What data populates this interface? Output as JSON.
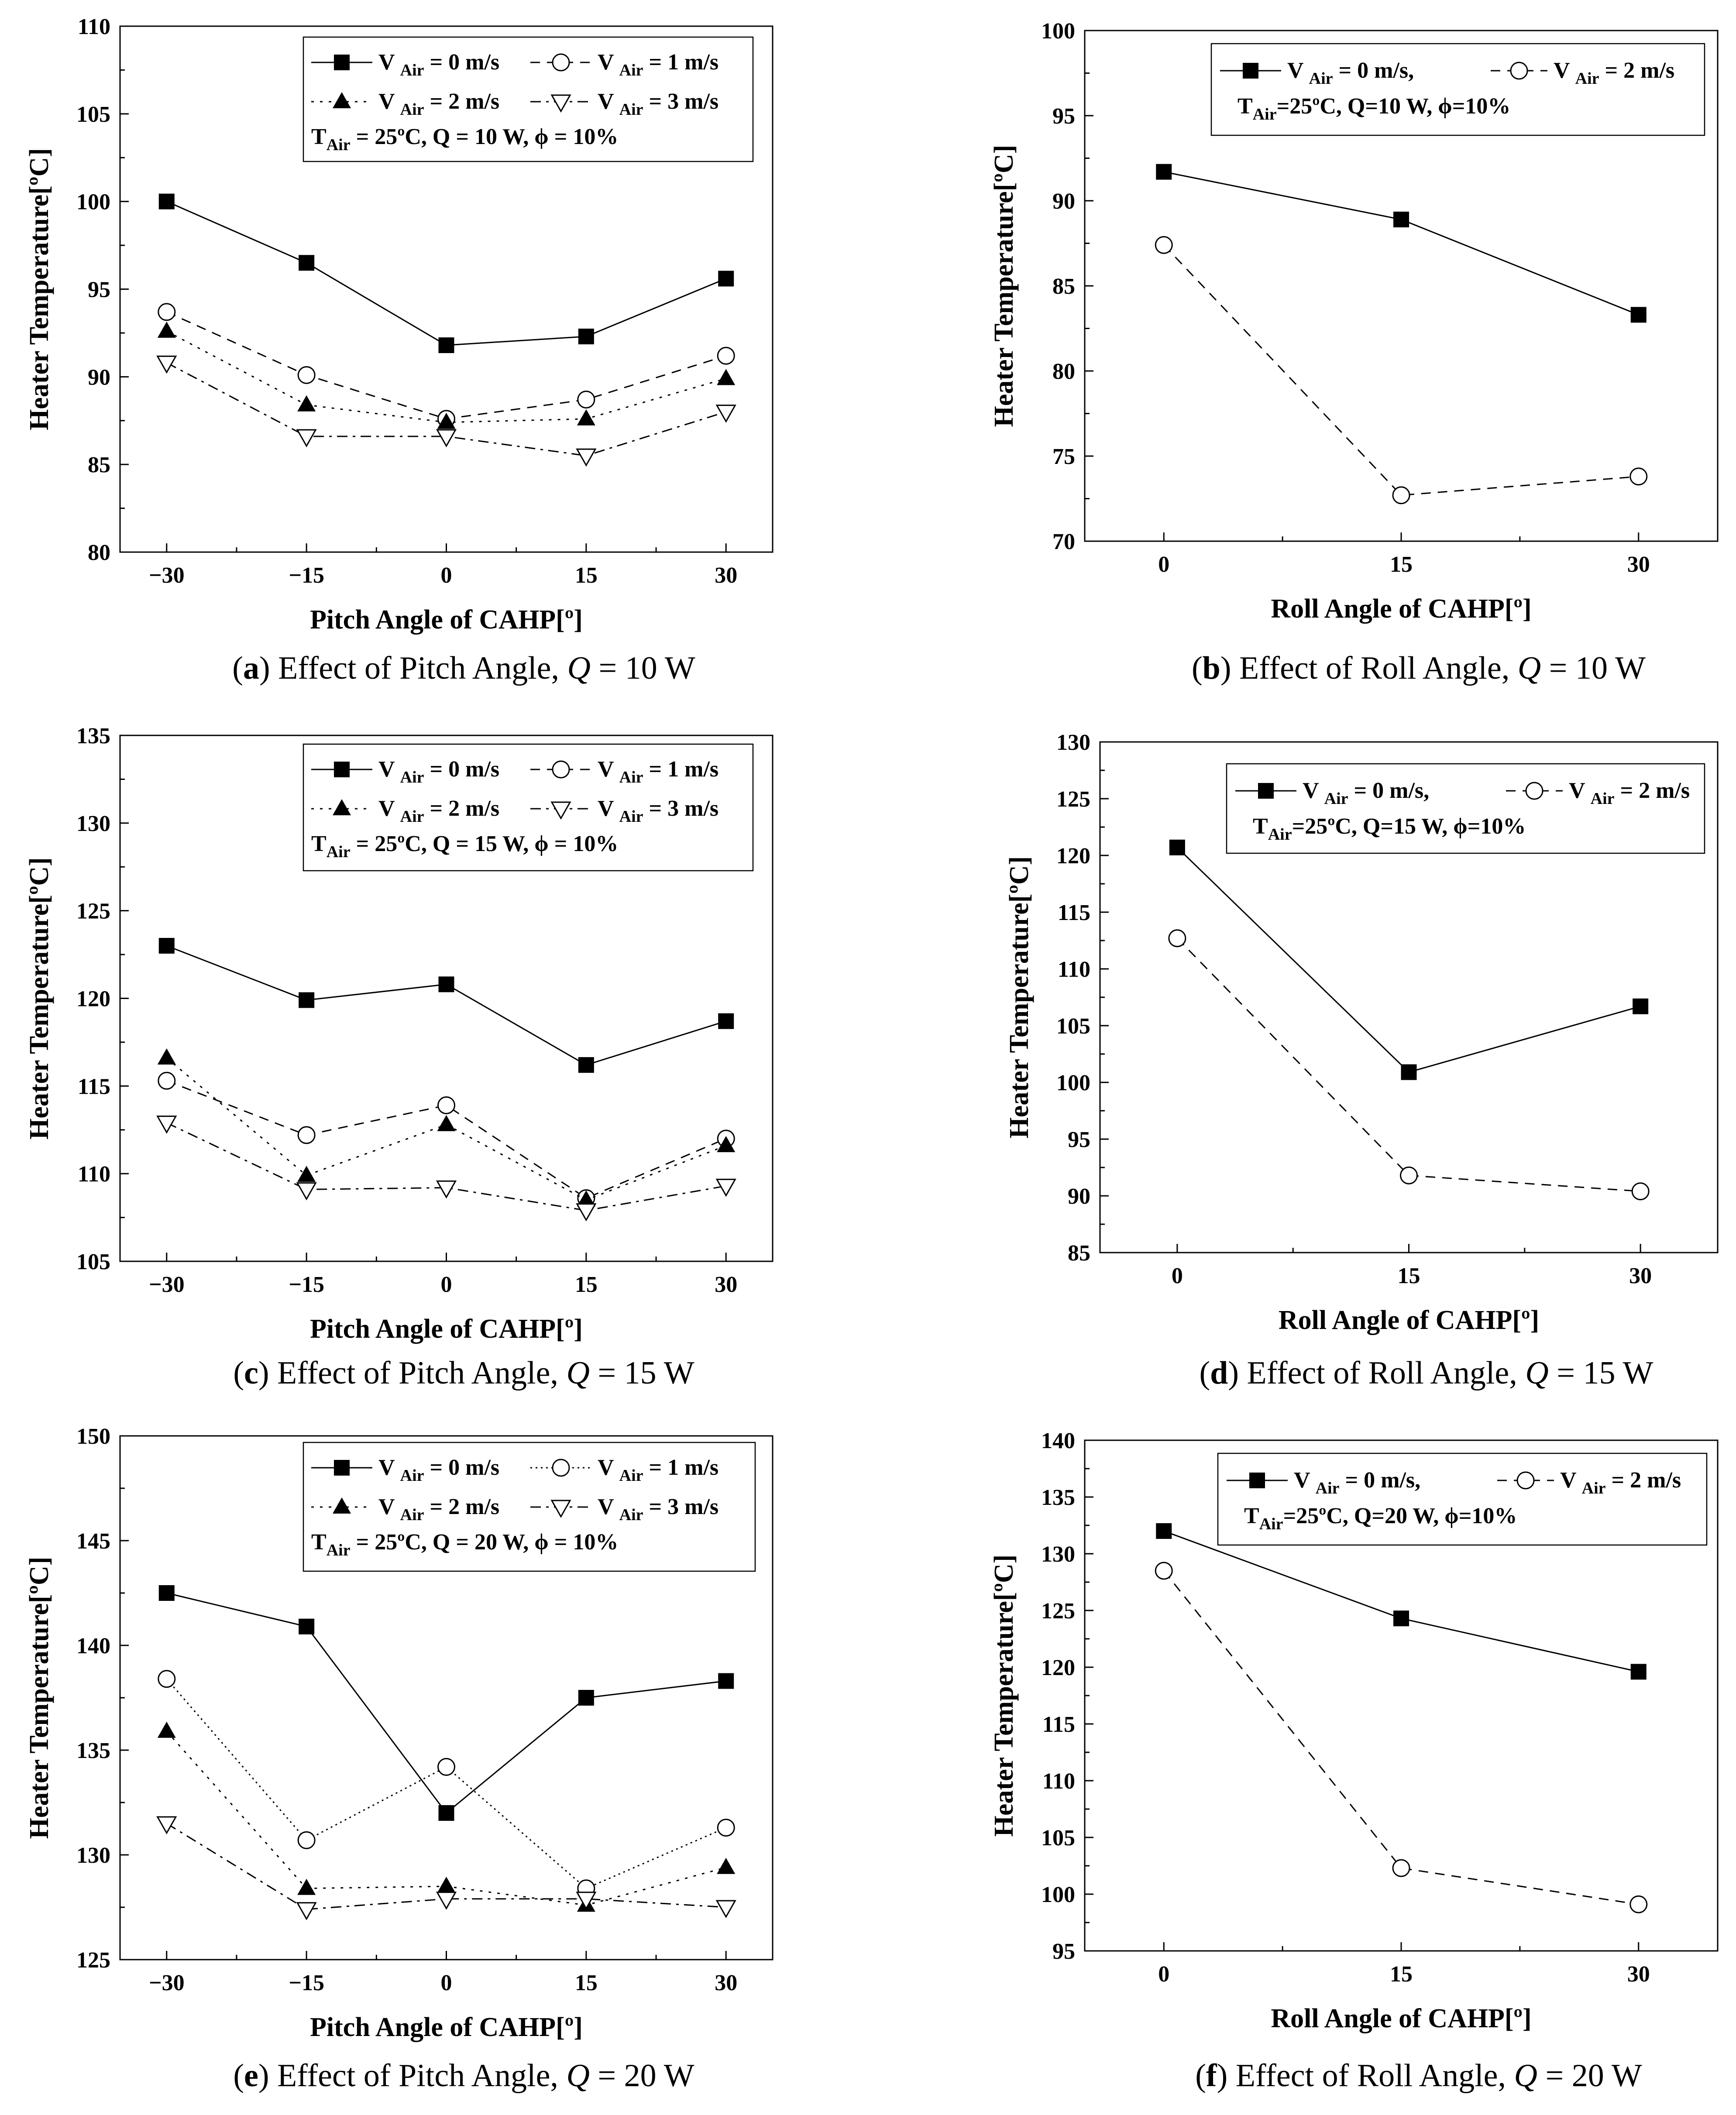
{
  "chart_data": [
    {
      "type": "line",
      "caption": {
        "letter": "a",
        "text": "Effect of Pitch Angle,",
        "qsym": "Q",
        "qval": "= 10 W"
      },
      "x": [
        -30,
        -15,
        0,
        15,
        30
      ],
      "xticks": [
        "−30",
        "−15",
        "0",
        "15",
        "30"
      ],
      "xlim": [
        -35,
        35
      ],
      "ylim": [
        80,
        110
      ],
      "yticks": [
        80,
        85,
        90,
        95,
        100,
        105,
        110
      ],
      "xlabel": "Pitch Angle of CAHP[º]",
      "ylabel": "Heater Temperature[ºC]",
      "legend_columns": 2,
      "legend_condition": {
        "t": "T",
        "sub": "Air",
        "rest": " = 25ºC, Q = 10 W, ϕ = 10%"
      },
      "series": [
        {
          "name": "V Air = 0 m/s",
          "pre": "V ",
          "sub": "Air",
          "post": " = 0 m/s",
          "marker": "square-filled",
          "dash": "solid",
          "values": [
            100.0,
            96.5,
            91.8,
            92.3,
            95.6
          ]
        },
        {
          "name": "V Air = 1 m/s",
          "pre": "V ",
          "sub": "Air",
          "post": " = 1 m/s",
          "marker": "circle-open",
          "dash": "dashed",
          "values": [
            93.7,
            90.1,
            87.6,
            88.7,
            91.2
          ]
        },
        {
          "name": "V Air = 2 m/s",
          "pre": "V ",
          "sub": "Air",
          "post": " = 2 m/s",
          "marker": "triangle-filled",
          "dash": "dotted",
          "values": [
            92.6,
            88.4,
            87.4,
            87.6,
            89.9
          ]
        },
        {
          "name": "V Air = 3 m/s",
          "pre": "V ",
          "sub": "Air",
          "post": " = 3 m/s",
          "marker": "triangle-down-open",
          "dash": "dashdot",
          "values": [
            90.8,
            86.6,
            86.6,
            85.5,
            88.0
          ]
        }
      ]
    },
    {
      "type": "line",
      "caption": {
        "letter": "b",
        "text": "Effect of Roll Angle,",
        "qsym": "Q",
        "qval": "= 10 W"
      },
      "x": [
        0,
        15,
        30
      ],
      "xticks": [
        "0",
        "15",
        "30"
      ],
      "xlim": [
        -5,
        35
      ],
      "ylim": [
        70,
        100
      ],
      "yticks": [
        70,
        75,
        80,
        85,
        90,
        95,
        100
      ],
      "xlabel": "Roll Angle of CAHP[º]",
      "ylabel": "Heater Temperature[ºC]",
      "legend_columns": 1,
      "legend_condition": {
        "t": "T",
        "sub": "Air",
        "rest": "=25ºC, Q=10 W, ϕ=10%"
      },
      "series": [
        {
          "name": "V Air = 0 m/s,",
          "pre": "V ",
          "sub": "Air",
          "post": " = 0 m/s,",
          "marker": "square-filled",
          "dash": "solid",
          "values": [
            91.7,
            88.9,
            83.3
          ]
        },
        {
          "name": "V Air = 2 m/s",
          "pre": "V ",
          "sub": "Air",
          "post": " = 2 m/s",
          "marker": "circle-open",
          "dash": "dashed",
          "values": [
            87.4,
            72.7,
            73.8
          ]
        }
      ]
    },
    {
      "type": "line",
      "caption": {
        "letter": "c",
        "text": "Effect of Pitch Angle,",
        "qsym": "Q",
        "qval": "= 15 W"
      },
      "x": [
        -30,
        -15,
        0,
        15,
        30
      ],
      "xticks": [
        "−30",
        "−15",
        "0",
        "15",
        "30"
      ],
      "xlim": [
        -35,
        35
      ],
      "ylim": [
        105,
        135
      ],
      "yticks": [
        105,
        110,
        115,
        120,
        125,
        130,
        135
      ],
      "xlabel": "Pitch Angle of CAHP[º]",
      "ylabel": "Heater Temperature[ºC]",
      "legend_columns": 2,
      "legend_condition": {
        "t": "T",
        "sub": "Air",
        "rest": " = 25ºC, Q = 15 W, ϕ = 10%"
      },
      "series": [
        {
          "name": "V Air = 0 m/s",
          "pre": "V ",
          "sub": "Air",
          "post": " = 0 m/s",
          "marker": "square-filled",
          "dash": "solid",
          "values": [
            123.0,
            119.9,
            120.8,
            116.2,
            118.7
          ]
        },
        {
          "name": "V Air = 1 m/s",
          "pre": "V ",
          "sub": "Air",
          "post": " = 1 m/s",
          "marker": "circle-open",
          "dash": "dashed",
          "values": [
            115.3,
            112.2,
            113.9,
            108.6,
            112.0
          ]
        },
        {
          "name": "V Air = 2 m/s",
          "pre": "V ",
          "sub": "Air",
          "post": " = 2 m/s",
          "marker": "triangle-filled",
          "dash": "dotted",
          "values": [
            116.6,
            109.9,
            112.8,
            108.5,
            111.6
          ]
        },
        {
          "name": "V Air = 3 m/s",
          "pre": "V ",
          "sub": "Air",
          "post": " = 3 m/s",
          "marker": "triangle-down-open",
          "dash": "dashdot",
          "values": [
            112.9,
            109.1,
            109.2,
            107.9,
            109.3
          ]
        }
      ]
    },
    {
      "type": "line",
      "caption": {
        "letter": "d",
        "text": "Effect of Roll Angle,",
        "qsym": "Q",
        "qval": "= 15 W"
      },
      "x": [
        0,
        15,
        30
      ],
      "xticks": [
        "0",
        "15",
        "30"
      ],
      "xlim": [
        -5,
        35
      ],
      "ylim": [
        85,
        130
      ],
      "yticks": [
        85,
        90,
        95,
        100,
        105,
        110,
        115,
        120,
        125,
        130
      ],
      "xlabel": "Roll Angle of CAHP[º]",
      "ylabel": "Heater Temperature[ºC]",
      "legend_columns": 1,
      "legend_condition": {
        "t": "T",
        "sub": "Air",
        "rest": "=25ºC, Q=15 W, ϕ=10%"
      },
      "series": [
        {
          "name": "V Air = 0 m/s,",
          "pre": "V ",
          "sub": "Air",
          "post": " = 0 m/s,",
          "marker": "square-filled",
          "dash": "solid",
          "values": [
            120.7,
            100.9,
            106.7
          ]
        },
        {
          "name": "V Air = 2 m/s",
          "pre": "V ",
          "sub": "Air",
          "post": " = 2 m/s",
          "marker": "circle-open",
          "dash": "dashed",
          "values": [
            112.7,
            91.8,
            90.4
          ]
        }
      ]
    },
    {
      "type": "line",
      "caption": {
        "letter": "e",
        "text": "Effect of Pitch Angle,",
        "qsym": "Q",
        "qval": "= 20 W"
      },
      "x": [
        -30,
        -15,
        0,
        15,
        30
      ],
      "xticks": [
        "−30",
        "−15",
        "0",
        "15",
        "30"
      ],
      "xlim": [
        -35,
        35
      ],
      "ylim": [
        125,
        150
      ],
      "yticks": [
        125,
        130,
        135,
        140,
        145,
        150
      ],
      "xlabel": "Pitch Angle of CAHP[º]",
      "ylabel": "Heater Temperature[ºC]",
      "legend_columns": 2,
      "legend_condition": {
        "t": "T",
        "sub": "Air",
        "rest": " = 25ºC, Q = 20 W, ϕ = 10%"
      },
      "series": [
        {
          "name": "V Air = 0 m/s",
          "pre": "V ",
          "sub": "Air",
          "post": " = 0 m/s",
          "marker": "square-filled",
          "dash": "solid",
          "values": [
            142.5,
            140.9,
            132.0,
            137.5,
            138.3
          ]
        },
        {
          "name": "V Air = 1 m/s",
          "pre": "V ",
          "sub": "Air",
          "post": " = 1 m/s",
          "marker": "circle-open",
          "dash": "dotted-fine",
          "values": [
            138.4,
            130.7,
            134.2,
            128.4,
            131.3
          ]
        },
        {
          "name": "V Air = 2 m/s",
          "pre": "V ",
          "sub": "Air",
          "post": " = 2 m/s",
          "marker": "triangle-filled",
          "dash": "dotted",
          "values": [
            135.9,
            128.4,
            128.5,
            127.6,
            129.4
          ]
        },
        {
          "name": "V Air = 3 m/s",
          "pre": "V ",
          "sub": "Air",
          "post": " = 3 m/s",
          "marker": "triangle-down-open",
          "dash": "dashdot",
          "values": [
            131.5,
            127.4,
            127.9,
            127.9,
            127.5
          ]
        }
      ]
    },
    {
      "type": "line",
      "caption": {
        "letter": "f",
        "text": "Effect of Roll Angle,",
        "qsym": "Q",
        "qval": "= 20 W"
      },
      "x": [
        0,
        15,
        30
      ],
      "xticks": [
        "0",
        "15",
        "30"
      ],
      "xlim": [
        -5,
        35
      ],
      "ylim": [
        95,
        140
      ],
      "yticks": [
        95,
        100,
        105,
        110,
        115,
        120,
        125,
        130,
        135,
        140
      ],
      "xlabel": "Roll Angle of CAHP[º]",
      "ylabel": "Heater Temperature[ºC]",
      "legend_columns": 1,
      "legend_condition": {
        "t": "T",
        "sub": "Air",
        "rest": "=25ºC, Q=20 W, ϕ=10%"
      },
      "series": [
        {
          "name": "V Air = 0 m/s,",
          "pre": "V ",
          "sub": "Air",
          "post": " = 0 m/s,",
          "marker": "square-filled",
          "dash": "solid",
          "values": [
            132.0,
            124.3,
            119.6
          ]
        },
        {
          "name": "V Air = 2 m/s",
          "pre": "V ",
          "sub": "Air",
          "post": " = 2 m/s",
          "marker": "circle-open",
          "dash": "dashed",
          "values": [
            128.5,
            102.3,
            99.1
          ]
        }
      ]
    }
  ]
}
